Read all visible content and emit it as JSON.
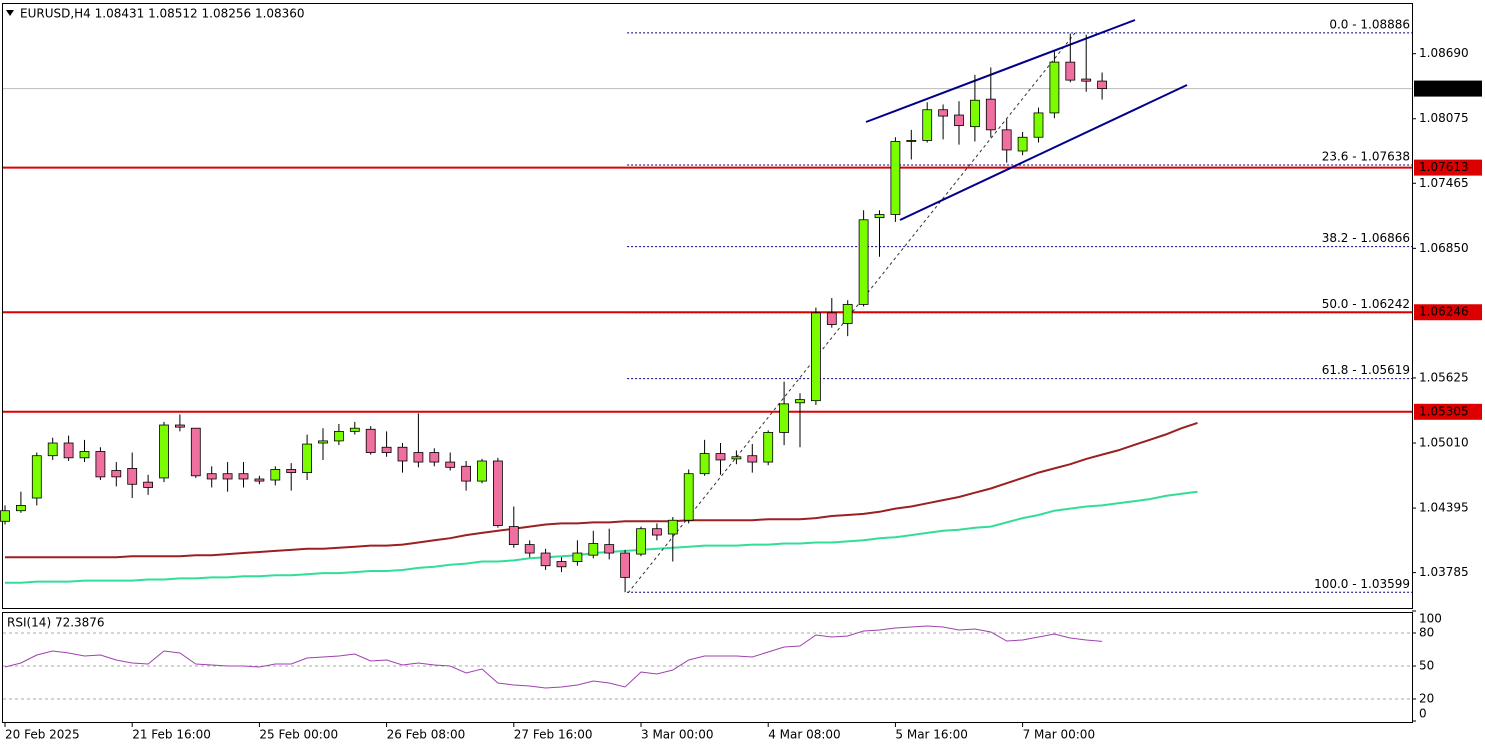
{
  "chart_data": {
    "type": "candlestick",
    "title": "EURUSD,H4  1.08431 1.08512 1.08256 1.08360",
    "categories": [
      "20 Feb 2025",
      null,
      null,
      null,
      null,
      null,
      null,
      null,
      "21 Feb 16:00",
      null,
      null,
      null,
      null,
      null,
      null,
      null,
      "25 Feb 00:00",
      null,
      null,
      null,
      null,
      null,
      null,
      null,
      "26 Feb 08:00",
      null,
      null,
      null,
      null,
      null,
      null,
      null,
      "27 Feb 16:00",
      null,
      null,
      null,
      null,
      null,
      null,
      null,
      "3 Mar 00:00",
      null,
      null,
      null,
      null,
      null,
      null,
      null,
      "4 Mar 08:00",
      null,
      null,
      null,
      null,
      null,
      null,
      null,
      "5 Mar 16:00",
      null,
      null,
      null,
      null,
      null,
      null,
      null,
      "7 Mar 00:00",
      null,
      null,
      null,
      null,
      null,
      null,
      null,
      null,
      null,
      null,
      null
    ],
    "open": [
      1.0427,
      1.0437,
      1.0449,
      1.0489,
      1.0501,
      1.0487,
      1.0493,
      1.0475,
      1.0477,
      1.0464,
      1.0468,
      1.0518,
      1.0515,
      1.0472,
      1.0472,
      1.0472,
      1.0467,
      1.0466,
      1.0476,
      1.0473,
      1.0501,
      1.0503,
      1.0512,
      1.0514,
      1.0497,
      1.0497,
      1.0492,
      1.0492,
      1.0483,
      1.0479,
      1.0465,
      1.0484,
      1.0422,
      1.0405,
      1.0397,
      1.0389,
      1.0389,
      1.0395,
      1.0405,
      1.0397,
      1.0396,
      1.042,
      1.0415,
      1.0428,
      1.0472,
      1.0491,
      1.0486,
      1.0489,
      1.0483,
      1.0511,
      1.0539,
      1.0541,
      1.0624,
      1.0614,
      1.0632,
      1.0714,
      1.0717,
      1.0786,
      1.0787,
      1.0816,
      1.0811,
      1.08,
      1.0826,
      1.0797,
      1.0777,
      1.079,
      1.0813,
      1.0861,
      1.0845,
      1.08431,
      null,
      null,
      null,
      null,
      null,
      null
    ],
    "high": [
      1.0442,
      1.0455,
      1.0492,
      1.0506,
      1.0508,
      1.0504,
      1.0497,
      1.0483,
      1.0492,
      1.0471,
      1.0521,
      1.0528,
      1.0515,
      1.0479,
      1.0483,
      1.0483,
      1.047,
      1.0479,
      1.0482,
      1.0509,
      1.0515,
      1.0519,
      1.0521,
      1.0517,
      1.0512,
      1.0501,
      1.0529,
      1.0496,
      1.0492,
      1.0484,
      1.0486,
      1.0487,
      1.0441,
      1.0409,
      1.0401,
      1.0393,
      1.0409,
      1.0418,
      1.042,
      1.04,
      1.0422,
      1.0425,
      1.0431,
      1.0476,
      1.0504,
      1.0501,
      1.0494,
      1.05,
      1.0513,
      1.0559,
      1.0548,
      1.0629,
      1.0638,
      1.0636,
      1.0721,
      1.0721,
      1.079,
      1.0797,
      1.0823,
      1.0821,
      1.0824,
      1.0849,
      1.0856,
      1.0807,
      1.0795,
      1.0818,
      1.0871,
      1.0888,
      1.0887,
      1.08512,
      null,
      null,
      null,
      null,
      null,
      null
    ],
    "low": [
      1.0424,
      1.0435,
      1.0442,
      1.0485,
      1.0484,
      1.0483,
      1.0466,
      1.046,
      1.0449,
      1.0452,
      1.0464,
      1.0512,
      1.0468,
      1.0459,
      1.0455,
      1.0459,
      1.0462,
      1.0461,
      1.0456,
      1.0466,
      1.0485,
      1.0499,
      1.0509,
      1.049,
      1.0488,
      1.0473,
      1.0478,
      1.0479,
      1.0475,
      1.0456,
      1.0463,
      1.0421,
      1.0402,
      1.0393,
      1.0381,
      1.0379,
      1.0385,
      1.0392,
      1.0391,
      1.036,
      1.0394,
      1.0409,
      1.0389,
      1.0425,
      1.047,
      1.0471,
      1.0481,
      1.0473,
      1.048,
      1.0499,
      1.0497,
      1.0537,
      1.061,
      1.0602,
      1.063,
      1.0677,
      1.071,
      1.0769,
      1.0785,
      1.0788,
      1.0783,
      1.0786,
      1.079,
      1.0766,
      1.0773,
      1.0785,
      1.0808,
      1.0842,
      1.0833,
      1.08256,
      null,
      null,
      null,
      null,
      null,
      null
    ],
    "close": [
      1.0437,
      1.0442,
      1.0489,
      1.0501,
      1.0487,
      1.0493,
      1.0469,
      1.0469,
      1.0462,
      1.0459,
      1.0518,
      1.0516,
      1.047,
      1.0467,
      1.0467,
      1.0467,
      1.0465,
      1.0476,
      1.0473,
      1.05,
      1.0503,
      1.0512,
      1.0515,
      1.0492,
      1.0492,
      1.0484,
      1.0483,
      1.0483,
      1.0478,
      1.0465,
      1.0484,
      1.0423,
      1.0405,
      1.0397,
      1.0385,
      1.0384,
      1.0397,
      1.0406,
      1.0397,
      1.0374,
      1.042,
      1.0414,
      1.0428,
      1.0472,
      1.0491,
      1.0485,
      1.0488,
      1.0483,
      1.0511,
      1.0538,
      1.0542,
      1.0624,
      1.0613,
      1.0632,
      1.0712,
      1.0717,
      1.0786,
      1.0787,
      1.0816,
      1.081,
      1.0801,
      1.0825,
      1.0797,
      1.0778,
      1.079,
      1.0813,
      1.0861,
      1.0844,
      1.0843,
      1.0836,
      null,
      null,
      null,
      null,
      null,
      null
    ],
    "up_color": "#7cfc00",
    "down_color": "#ee6fa0",
    "overlays": [
      {
        "color": "#9b2020",
        "values": [
          1.0393,
          1.0393,
          1.0393,
          1.0393,
          1.0393,
          1.0393,
          1.0393,
          1.0393,
          1.0394,
          1.0394,
          1.0394,
          1.0394,
          1.0395,
          1.0395,
          1.0396,
          1.0397,
          1.0398,
          1.0399,
          1.04,
          1.0401,
          1.0401,
          1.0402,
          1.0403,
          1.0404,
          1.0404,
          1.0405,
          1.0407,
          1.0409,
          1.0411,
          1.0414,
          1.0416,
          1.0418,
          1.042,
          1.0422,
          1.0424,
          1.0425,
          1.0425,
          1.0426,
          1.0426,
          1.0427,
          1.0427,
          1.0427,
          1.0427,
          1.0428,
          1.0428,
          1.0428,
          1.0428,
          1.0428,
          1.0429,
          1.0429,
          1.0429,
          1.043,
          1.0432,
          1.0433,
          1.0434,
          1.0436,
          1.0439,
          1.0441,
          1.0444,
          1.0447,
          1.045,
          1.0454,
          1.0458,
          1.0463,
          1.0468,
          1.0473,
          1.0477,
          1.0481,
          1.0486,
          1.049,
          1.0494,
          1.0499,
          1.0504,
          1.0509,
          1.0515,
          1.052
        ]
      },
      {
        "color": "#33dd99",
        "values": [
          1.0369,
          1.0369,
          1.037,
          1.037,
          1.037,
          1.0371,
          1.0371,
          1.0371,
          1.0371,
          1.0372,
          1.0372,
          1.0373,
          1.0373,
          1.0374,
          1.0374,
          1.0375,
          1.0375,
          1.0376,
          1.0376,
          1.0377,
          1.0378,
          1.0378,
          1.0379,
          1.038,
          1.038,
          1.0381,
          1.0383,
          1.0384,
          1.0386,
          1.0387,
          1.0389,
          1.0389,
          1.039,
          1.0392,
          1.0393,
          1.0394,
          1.0395,
          1.0397,
          1.0398,
          1.0399,
          1.04,
          1.0401,
          1.0402,
          1.0403,
          1.0404,
          1.0404,
          1.0404,
          1.0405,
          1.0405,
          1.0406,
          1.0406,
          1.0407,
          1.0407,
          1.0408,
          1.0409,
          1.0411,
          1.0412,
          1.0414,
          1.0416,
          1.0418,
          1.0419,
          1.0421,
          1.0422,
          1.0426,
          1.043,
          1.0433,
          1.0437,
          1.0439,
          1.0441,
          1.0442,
          1.0444,
          1.0446,
          1.0448,
          1.0451,
          1.0453,
          1.0455
        ]
      }
    ],
    "ylim": [
      1.0346,
      1.0915
    ],
    "yticks": [
      {
        "value": 1.0869,
        "label": "1.08690"
      },
      1.08075,
      1.07465,
      {
        "value": 1.0685,
        "label": "1.06850"
      },
      1.05625,
      {
        "value": 1.0501,
        "label": "1.05010"
      },
      1.04395,
      1.03785
    ],
    "hlines": [
      {
        "value": 1.07613,
        "color": "#dd0000"
      },
      {
        "value": 1.06246,
        "color": "#dd0000"
      },
      {
        "value": 1.05305,
        "color": "#dd0000"
      }
    ],
    "last_price": {
      "value": 1.0836,
      "label": "1.08360"
    },
    "fibonacci": {
      "color": "#00007f",
      "levels": [
        {
          "value": 1.08886,
          "label": "0.0 - 1.08886"
        },
        {
          "value": 1.07638,
          "label": "23.6 - 1.07638"
        },
        {
          "value": 1.06866,
          "label": "38.2 - 1.06866"
        },
        {
          "value": 1.06242,
          "label": "50.0 - 1.06242"
        },
        {
          "value": 1.05619,
          "label": "61.8 - 1.05619"
        },
        {
          "value": 1.03599,
          "label": "100.0 - 1.03599"
        }
      ]
    },
    "indicator": {
      "title": "RSI(14) 72.3876",
      "color": "#a040b0",
      "values": [
        49.1,
        52.7,
        60.0,
        63.6,
        61.8,
        59.1,
        60.0,
        55.5,
        52.7,
        51.8,
        63.6,
        61.8,
        51.8,
        50.9,
        50.0,
        50.0,
        49.1,
        51.8,
        51.8,
        57.3,
        58.2,
        59.1,
        60.9,
        54.5,
        55.5,
        50.9,
        52.7,
        50.9,
        50.0,
        43.6,
        47.3,
        34.5,
        32.7,
        31.8,
        30.0,
        30.9,
        32.7,
        36.4,
        34.5,
        30.9,
        44.5,
        42.7,
        46.4,
        55.5,
        59.1,
        59.1,
        59.1,
        58.2,
        62.7,
        67.3,
        68.2,
        78.2,
        76.4,
        77.3,
        81.8,
        82.7,
        84.5,
        85.5,
        86.4,
        85.5,
        82.7,
        83.6,
        80.9,
        72.7,
        73.6,
        76.4,
        79.1,
        75.5,
        73.6,
        72.3876,
        null,
        null,
        null,
        null,
        null,
        null
      ],
      "ylim": [
        0,
        100
      ],
      "yticks": [
        0,
        20,
        50,
        80,
        100
      ]
    }
  }
}
